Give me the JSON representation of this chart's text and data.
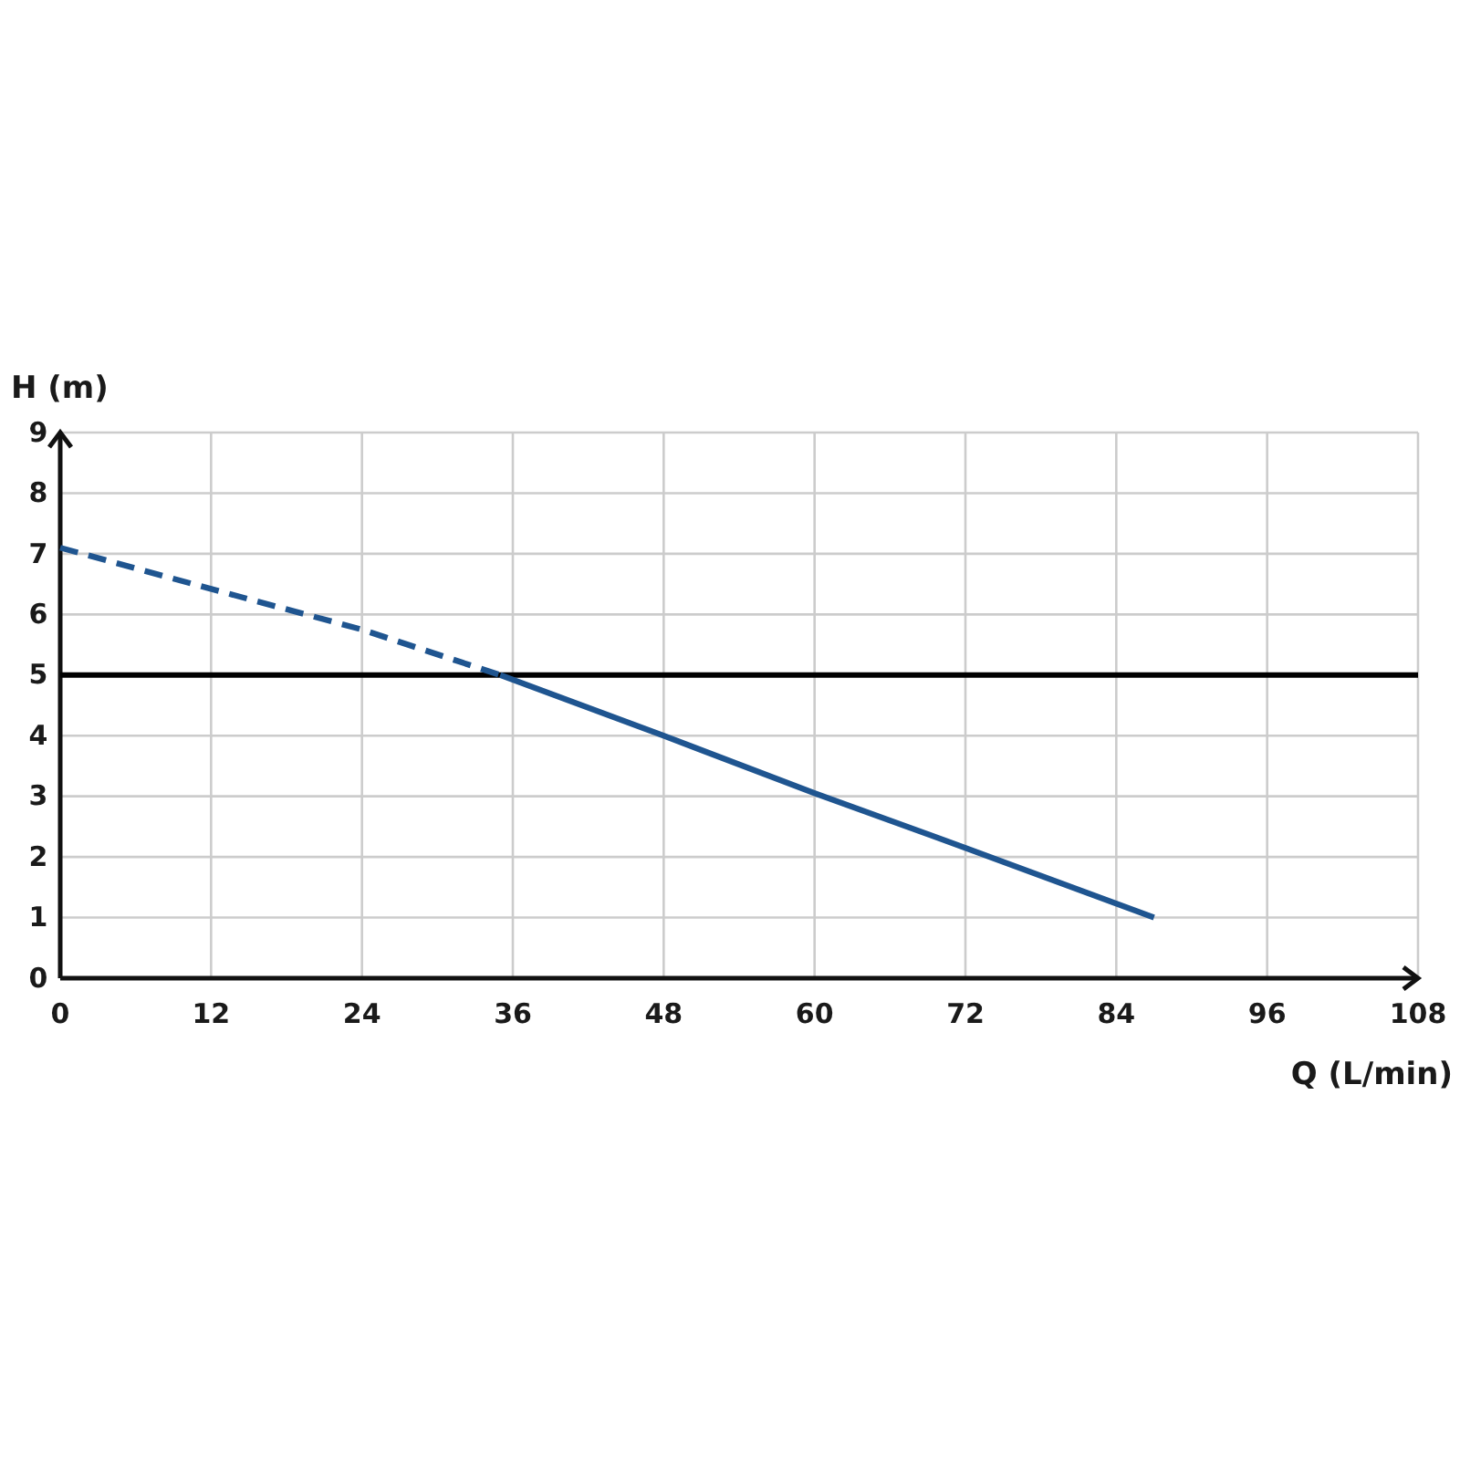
{
  "chart_data": {
    "type": "line",
    "xlabel": "Q (L/min)",
    "ylabel": "H (m)",
    "xlim": [
      0,
      108
    ],
    "xticks": [
      0,
      12,
      24,
      36,
      48,
      60,
      72,
      84,
      96,
      108
    ],
    "ylim": [
      0,
      9
    ],
    "yticks": [
      0,
      1,
      2,
      3,
      4,
      5,
      6,
      7,
      8,
      9
    ],
    "grid": true,
    "marker": "none",
    "series": [
      {
        "color": "#1f5590",
        "line_style": "dashed",
        "x": [
          0,
          12,
          24,
          35
        ],
        "values": [
          7.1,
          6.42,
          5.75,
          5.0
        ]
      },
      {
        "color": "#1f5590",
        "line_style": "solid",
        "x": [
          35,
          48,
          60,
          72,
          87
        ],
        "values": [
          5.0,
          4.0,
          3.05,
          2.15,
          1.0
        ]
      }
    ],
    "ref_lines": [
      {
        "axis": "y",
        "value": 5,
        "color": "#000000",
        "line_style": "solid"
      }
    ]
  }
}
